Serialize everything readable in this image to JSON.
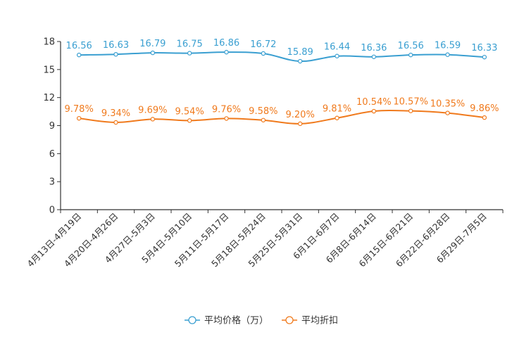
{
  "chart_data": {
    "type": "line",
    "categories": [
      "4月13日-4月19日",
      "4月20日-4月26日",
      "4月27日-5月3日",
      "5月4日-5月10日",
      "5月11日-5月17日",
      "5月18日-5月24日",
      "5月25日-5月31日",
      "6月1日-6月7日",
      "6月8日-6月14日",
      "6月15日-6月21日",
      "6月22日-6月28日",
      "6月29日-7月5日"
    ],
    "ylim": [
      0,
      18
    ],
    "yticks": [
      "0",
      "3",
      "6",
      "9",
      "12",
      "15",
      "18"
    ],
    "series": [
      {
        "name": "平均价格（万）",
        "color": "#3a9fd1",
        "values": [
          16.56,
          16.63,
          16.79,
          16.75,
          16.86,
          16.72,
          15.89,
          16.44,
          16.36,
          16.56,
          16.59,
          16.33
        ],
        "labels": [
          "16.56",
          "16.63",
          "16.79",
          "16.75",
          "16.86",
          "16.72",
          "15.89",
          "16.44",
          "16.36",
          "16.56",
          "16.59",
          "16.33"
        ]
      },
      {
        "name": "平均折扣",
        "color": "#f07a1d",
        "values": [
          9.78,
          9.34,
          9.69,
          9.54,
          9.76,
          9.58,
          9.2,
          9.81,
          10.54,
          10.57,
          10.35,
          9.86
        ],
        "labels": [
          "9.78%",
          "9.34%",
          "9.69%",
          "9.54%",
          "9.76%",
          "9.58%",
          "9.20%",
          "9.81%",
          "10.54%",
          "10.57%",
          "10.35%",
          "9.86%"
        ]
      }
    ]
  }
}
